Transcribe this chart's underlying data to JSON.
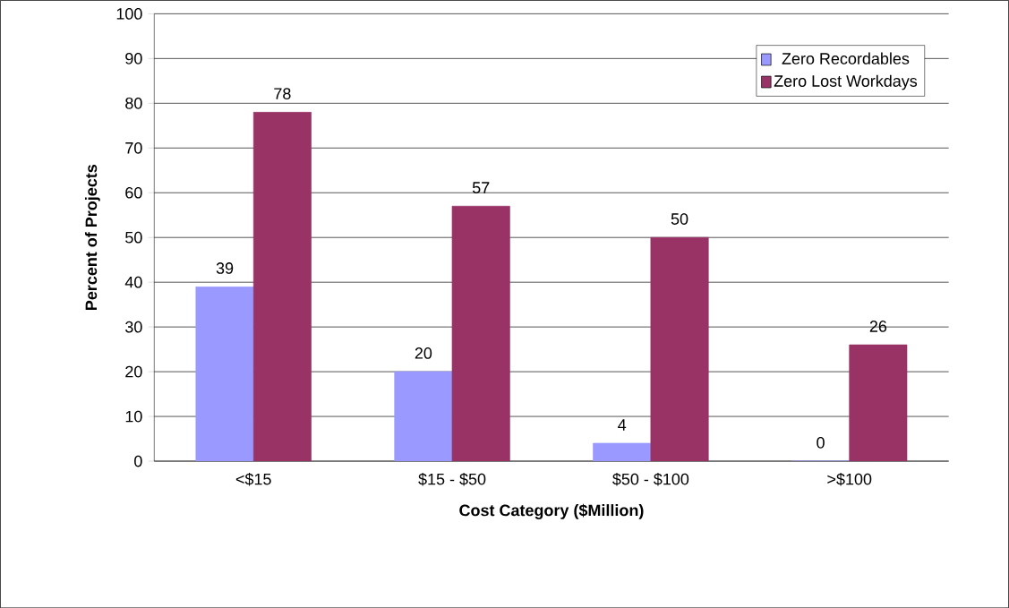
{
  "chart_data": {
    "type": "bar",
    "xlabel": "Cost Category ($Million)",
    "ylabel": "Percent of Projects",
    "categories": [
      "<$15",
      "$15 - $50",
      "$50 - $100",
      ">$100"
    ],
    "series": [
      {
        "name": "Zero Recordables",
        "color": "#9999ff",
        "values": [
          39,
          20,
          4,
          0
        ]
      },
      {
        "name": "Zero Lost Workdays",
        "color": "#993366",
        "values": [
          78,
          57,
          50,
          26
        ]
      }
    ],
    "ylim": [
      0,
      100
    ],
    "yticks": [
      0,
      10,
      20,
      30,
      40,
      50,
      60,
      70,
      80,
      90,
      100
    ],
    "grid": "y",
    "legend": "top right",
    "data_labels": true
  }
}
